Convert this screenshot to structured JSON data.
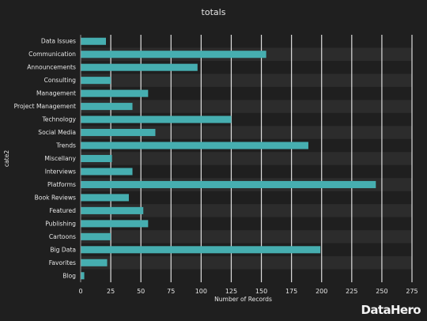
{
  "chart_data": {
    "type": "bar",
    "orientation": "horizontal",
    "title": "totals",
    "xlabel": "Number of Records",
    "ylabel": "cate2",
    "xlim": [
      0,
      275
    ],
    "xticks": [
      0,
      25,
      50,
      75,
      100,
      125,
      150,
      175,
      200,
      225,
      250,
      275
    ],
    "grid": true,
    "legend": "none",
    "categories": [
      "Data Issues",
      "Communication",
      "Announcements",
      "Consulting",
      "Management",
      "Project Management",
      "Technology",
      "Social Media",
      "Trends",
      "Miscellany",
      "Interviews",
      "Platforms",
      "Book Reviews",
      "Featured",
      "Publishing",
      "Cartoons",
      "Big Data",
      "Favorites",
      "Blog"
    ],
    "values": [
      21,
      154,
      97,
      25,
      56,
      43,
      125,
      62,
      189,
      26,
      43,
      245,
      40,
      52,
      56,
      25,
      199,
      22,
      3
    ]
  },
  "brand": {
    "name": "DataHero"
  },
  "colors": {
    "background": "#1f1f1f",
    "band": "#2c2c2c",
    "bar": "#46aeb0",
    "grid": "#ffffff",
    "text": "#e6e6e6",
    "title": "#e6e6e6"
  }
}
